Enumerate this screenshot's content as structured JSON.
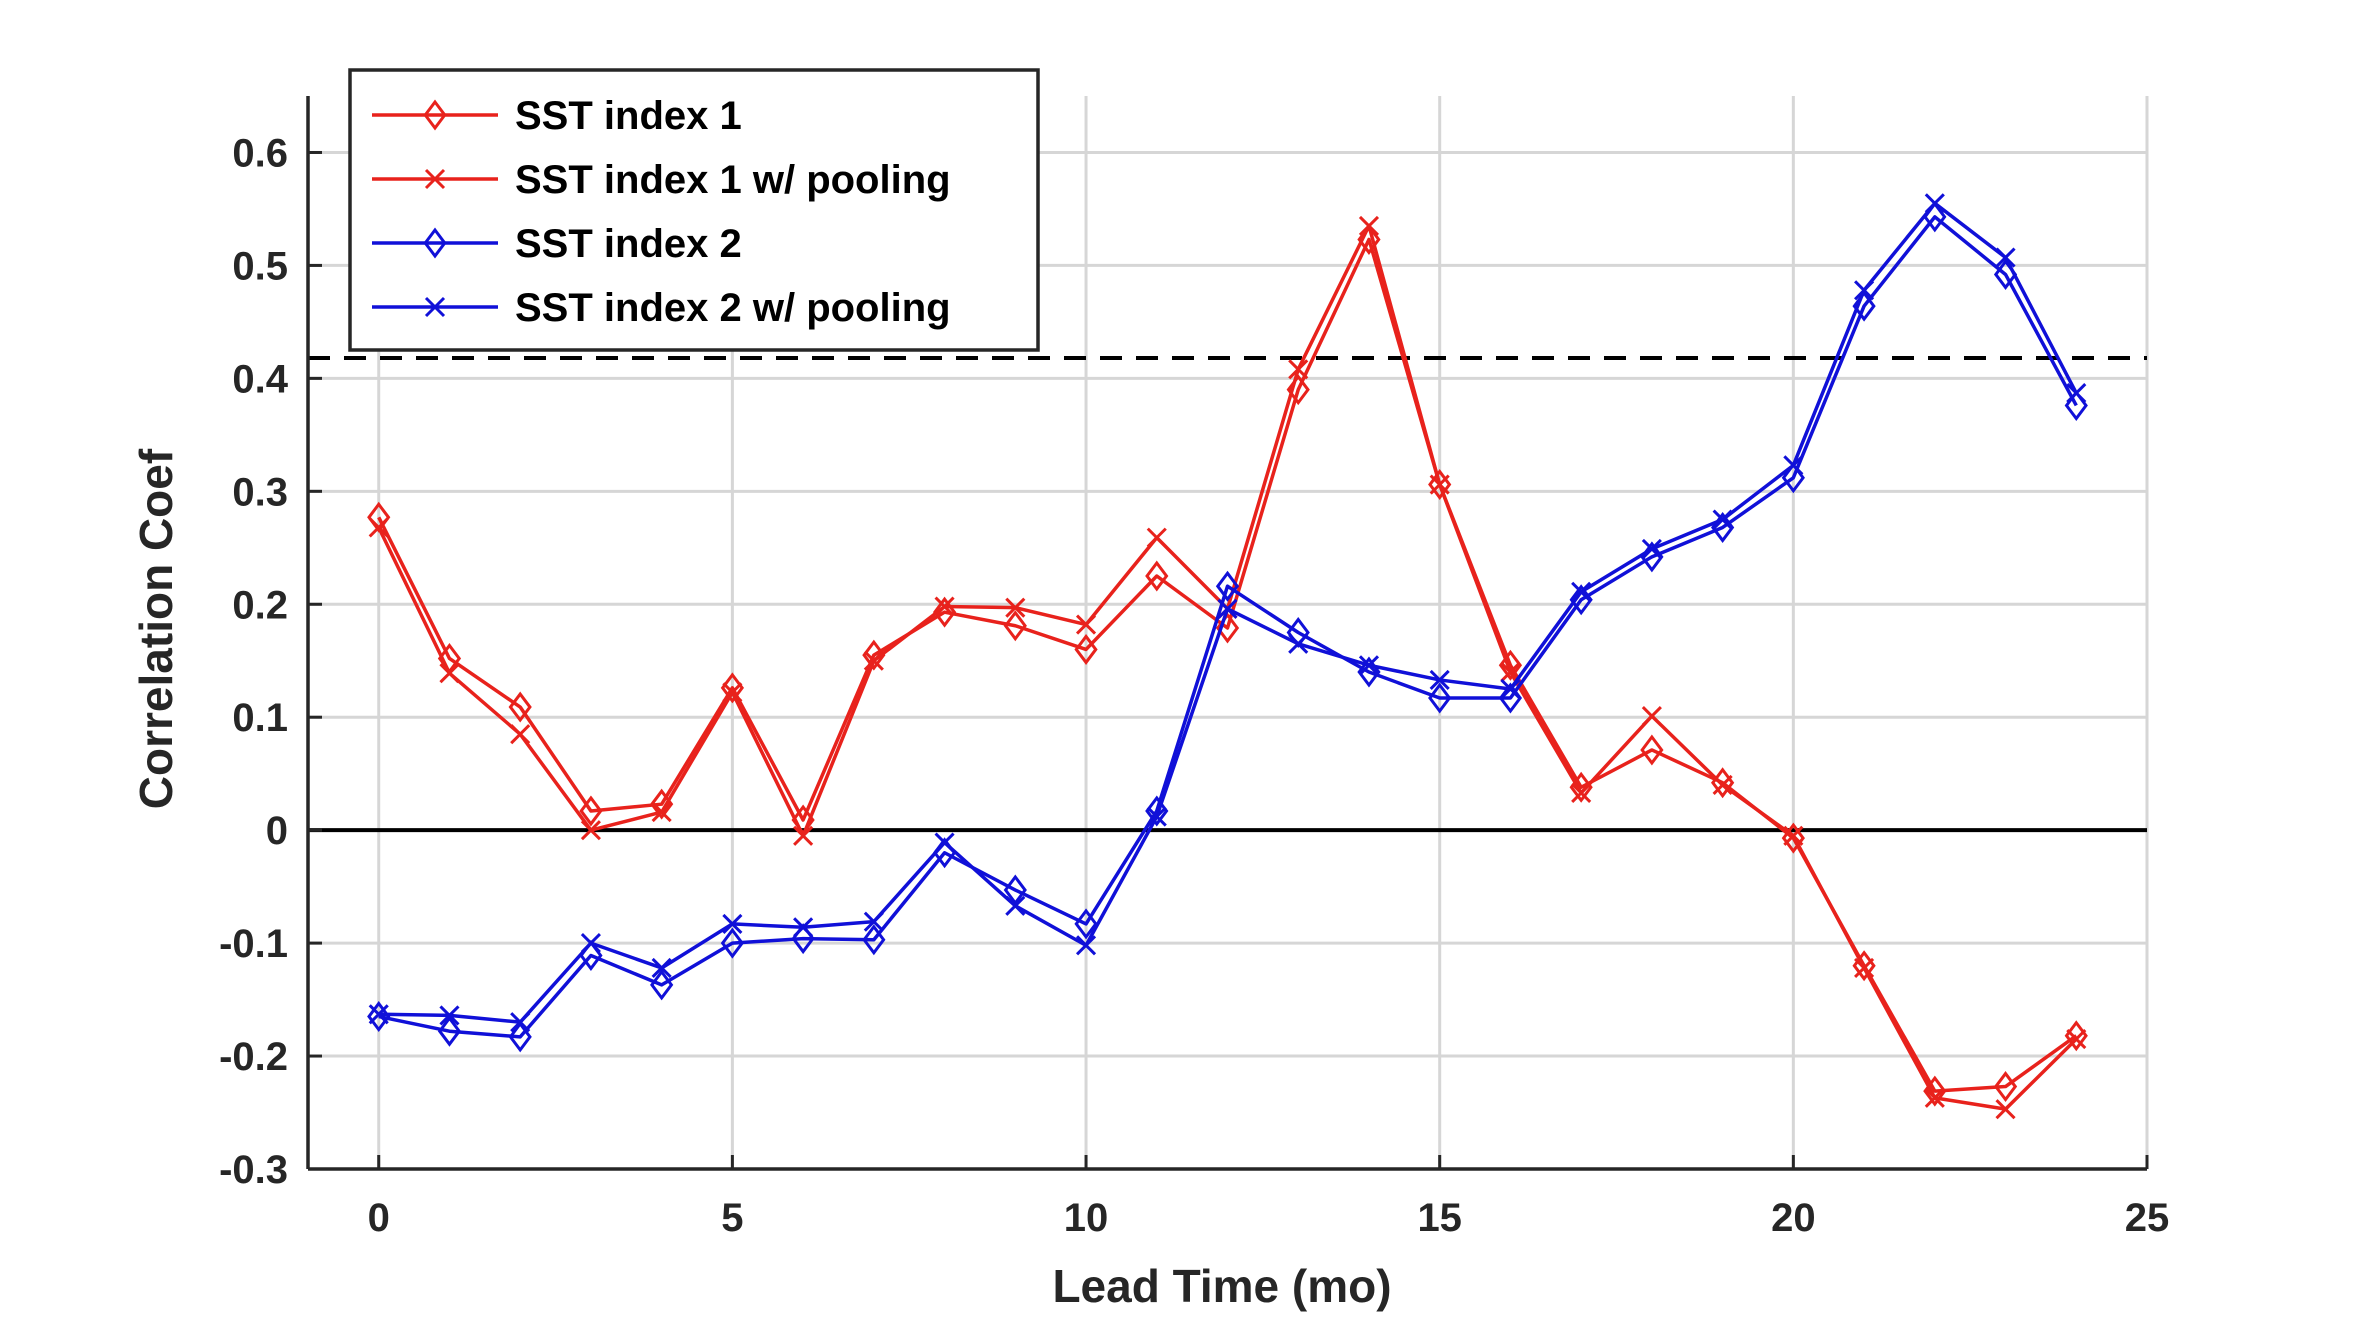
{
  "chart_data": {
    "type": "line",
    "xlabel": "Lead Time (mo)",
    "ylabel": "Correlation Coef",
    "xlim": [
      -1,
      25
    ],
    "ylim": [
      -0.3,
      0.65
    ],
    "xticks": [
      0,
      5,
      10,
      15,
      20,
      25
    ],
    "xtick_labels": [
      "0",
      "5",
      "10",
      "15",
      "20",
      "25"
    ],
    "yticks": [
      -0.3,
      -0.2,
      -0.1,
      0,
      0.1,
      0.2,
      0.3,
      0.4,
      0.5,
      0.6
    ],
    "ytick_labels": [
      "-0.3",
      "-0.2",
      "-0.1",
      "0",
      "0.1",
      "0.2",
      "0.3",
      "0.4",
      "0.5",
      "0.6"
    ],
    "grid": true,
    "legend_position": "top-left",
    "reference_lines": [
      {
        "y": 0.418,
        "style": "dashed",
        "color": "#000000"
      },
      {
        "y": 0,
        "style": "solid",
        "color": "#000000"
      }
    ],
    "x": [
      0,
      1,
      2,
      3,
      4,
      5,
      6,
      7,
      8,
      9,
      10,
      11,
      12,
      13,
      14,
      15,
      16,
      17,
      18,
      19,
      20,
      21,
      22,
      23,
      24
    ],
    "series": [
      {
        "name": "SST index 1",
        "color": "#e8221c",
        "marker": "diamond",
        "values": [
          0.277,
          0.152,
          0.109,
          0.017,
          0.023,
          0.126,
          0.009,
          0.155,
          0.193,
          0.181,
          0.16,
          0.225,
          0.179,
          0.39,
          0.523,
          0.306,
          0.146,
          0.038,
          0.071,
          0.042,
          -0.007,
          -0.12,
          -0.231,
          -0.227,
          -0.182
        ]
      },
      {
        "name": "SST index 1 w/ pooling",
        "color": "#e8221c",
        "marker": "x",
        "values": [
          0.268,
          0.139,
          0.085,
          0.0,
          0.016,
          0.122,
          -0.005,
          0.15,
          0.198,
          0.197,
          0.182,
          0.259,
          0.196,
          0.408,
          0.535,
          0.306,
          0.14,
          0.033,
          0.101,
          0.04,
          -0.005,
          -0.122,
          -0.237,
          -0.247,
          -0.185
        ]
      },
      {
        "name": "SST index 2",
        "color": "#1010d8",
        "marker": "diamond",
        "values": [
          -0.165,
          -0.178,
          -0.183,
          -0.111,
          -0.137,
          -0.1,
          -0.096,
          -0.097,
          -0.02,
          -0.053,
          -0.083,
          0.017,
          0.216,
          0.175,
          0.14,
          0.117,
          0.117,
          0.204,
          0.242,
          0.268,
          0.312,
          0.464,
          0.543,
          0.492,
          0.376
        ]
      },
      {
        "name": "SST index 2 w/ pooling",
        "color": "#1010d8",
        "marker": "x",
        "values": [
          -0.163,
          -0.164,
          -0.17,
          -0.1,
          -0.122,
          -0.083,
          -0.086,
          -0.081,
          -0.011,
          -0.067,
          -0.102,
          0.012,
          0.196,
          0.165,
          0.146,
          0.133,
          0.125,
          0.211,
          0.249,
          0.275,
          0.323,
          0.478,
          0.555,
          0.507,
          0.387
        ]
      }
    ]
  }
}
